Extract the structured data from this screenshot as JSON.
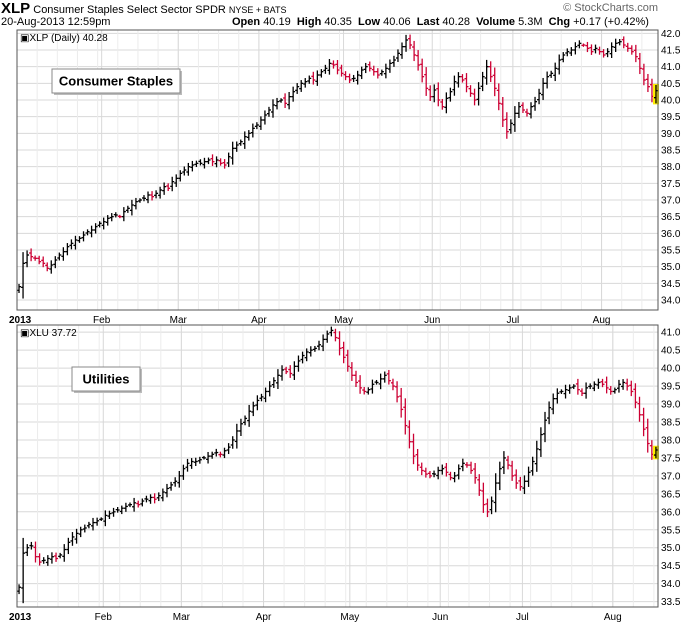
{
  "header": {
    "symbol": "XLP",
    "title": "Consumer Staples Select Sector SPDR",
    "exchange": "NYSE + BATS",
    "datetime": "20-Aug-2013 12:59pm",
    "open_label": "Open",
    "open": "40.19",
    "high_label": "High",
    "high": "40.35",
    "low_label": "Low",
    "low": "40.06",
    "last_label": "Last",
    "last": "40.28",
    "volume_label": "Volume",
    "volume": "5.3M",
    "chg_label": "Chg",
    "chg": "+0.17 (+0.42%)",
    "credit": "© StockCharts.com"
  },
  "colors": {
    "up": "#000000",
    "down": "#cc0033",
    "last_highlight": "#ffee00",
    "grid": "#d8d8d8",
    "frame": "#555555"
  },
  "chart_data": [
    {
      "type": "ohlc",
      "legend": "XLP (Daily) 40.28",
      "annotation": "Consumer Staples",
      "ylim": [
        33.7,
        42.1
      ],
      "yticks": [
        "34.0",
        "34.5",
        "35.0",
        "35.5",
        "36.0",
        "36.5",
        "37.0",
        "37.5",
        "38.0",
        "38.5",
        "39.0",
        "39.5",
        "40.0",
        "40.5",
        "41.0",
        "41.5",
        "42.0"
      ],
      "x_labels": [
        "2013",
        "Feb",
        "Mar",
        "Apr",
        "May",
        "Jun",
        "Jul",
        "Aug"
      ],
      "month_starts": [
        0,
        21,
        40,
        60,
        81,
        103,
        123,
        145
      ],
      "closes": [
        34.4,
        35.1,
        35.35,
        35.3,
        35.25,
        35.15,
        35.1,
        34.95,
        35.05,
        35.2,
        35.35,
        35.45,
        35.6,
        35.7,
        35.8,
        35.85,
        35.95,
        36.05,
        36.1,
        36.2,
        36.3,
        36.35,
        36.45,
        36.5,
        36.55,
        36.5,
        36.65,
        36.75,
        36.85,
        36.95,
        37.0,
        37.05,
        37.15,
        37.1,
        37.2,
        37.3,
        37.4,
        37.35,
        37.55,
        37.65,
        37.8,
        37.9,
        38.0,
        38.05,
        38.1,
        38.1,
        38.15,
        38.2,
        38.15,
        38.2,
        38.1,
        38.05,
        38.3,
        38.55,
        38.65,
        38.75,
        38.9,
        39.0,
        39.15,
        39.25,
        39.4,
        39.55,
        39.7,
        39.85,
        39.95,
        40.0,
        39.9,
        40.1,
        40.25,
        40.4,
        40.5,
        40.55,
        40.65,
        40.6,
        40.75,
        40.85,
        40.95,
        41.1,
        41.05,
        40.9,
        40.8,
        40.7,
        40.6,
        40.65,
        40.75,
        40.9,
        41.0,
        40.95,
        40.85,
        40.75,
        40.85,
        40.95,
        41.1,
        41.2,
        41.4,
        41.6,
        41.8,
        41.65,
        41.35,
        41.05,
        40.7,
        40.35,
        40.1,
        40.3,
        40.0,
        39.8,
        40.05,
        40.25,
        40.55,
        40.7,
        40.6,
        40.4,
        40.2,
        40.0,
        40.35,
        40.7,
        41.0,
        40.7,
        40.35,
        39.9,
        39.4,
        39.05,
        39.3,
        39.6,
        39.8,
        39.7,
        39.6,
        39.8,
        39.95,
        40.2,
        40.5,
        40.7,
        40.8,
        40.95,
        41.2,
        41.35,
        41.45,
        41.5,
        41.6,
        41.7,
        41.65,
        41.55,
        41.45,
        41.55,
        41.45,
        41.35,
        41.45,
        41.6,
        41.7,
        41.75,
        41.65,
        41.55,
        41.45,
        41.3,
        40.95,
        40.6,
        40.4,
        40.11,
        40.28
      ]
    },
    {
      "type": "ohlc",
      "legend": "XLU 37.72",
      "annotation": "Utilities",
      "ylim": [
        33.35,
        41.2
      ],
      "yticks": [
        "33.5",
        "34.0",
        "34.5",
        "35.0",
        "35.5",
        "36.0",
        "36.5",
        "37.0",
        "37.5",
        "38.0",
        "38.5",
        "39.0",
        "39.5",
        "40.0",
        "40.5",
        "41.0"
      ],
      "x_labels": [
        "2013",
        "Feb",
        "Mar",
        "Apr",
        "May",
        "Jun",
        "Jul",
        "Aug"
      ],
      "month_starts": [
        0,
        21,
        40,
        60,
        81,
        103,
        123,
        145
      ],
      "closes": [
        33.9,
        34.85,
        35.0,
        35.05,
        34.75,
        34.6,
        34.65,
        34.7,
        34.75,
        34.7,
        34.8,
        34.95,
        35.15,
        35.3,
        35.4,
        35.5,
        35.55,
        35.65,
        35.7,
        35.75,
        35.8,
        35.9,
        35.95,
        36.0,
        36.05,
        36.1,
        36.15,
        36.2,
        36.25,
        36.2,
        36.3,
        36.35,
        36.4,
        36.35,
        36.45,
        36.55,
        36.65,
        36.75,
        36.85,
        37.0,
        37.2,
        37.35,
        37.4,
        37.4,
        37.45,
        37.5,
        37.55,
        37.6,
        37.65,
        37.6,
        37.7,
        37.8,
        38.0,
        38.25,
        38.45,
        38.6,
        38.8,
        38.95,
        39.1,
        39.2,
        39.35,
        39.5,
        39.65,
        39.8,
        39.95,
        39.9,
        39.85,
        40.05,
        40.2,
        40.35,
        40.45,
        40.5,
        40.55,
        40.65,
        40.8,
        40.95,
        41.05,
        40.85,
        40.55,
        40.3,
        40.05,
        39.8,
        39.6,
        39.45,
        39.35,
        39.4,
        39.55,
        39.6,
        39.7,
        39.8,
        39.65,
        39.5,
        39.2,
        38.85,
        38.4,
        37.95,
        37.55,
        37.3,
        37.15,
        37.05,
        37.0,
        37.05,
        37.15,
        37.2,
        37.1,
        36.95,
        37.0,
        37.2,
        37.35,
        37.3,
        37.15,
        36.95,
        36.6,
        36.2,
        36.0,
        36.3,
        36.8,
        37.2,
        37.5,
        37.3,
        37.0,
        36.8,
        36.7,
        36.85,
        37.1,
        37.4,
        37.75,
        38.15,
        38.55,
        38.9,
        39.15,
        39.3,
        39.35,
        39.4,
        39.45,
        39.5,
        39.4,
        39.3,
        39.45,
        39.5,
        39.55,
        39.6,
        39.55,
        39.45,
        39.35,
        39.4,
        39.55,
        39.6,
        39.5,
        39.35,
        39.05,
        38.7,
        38.3,
        37.9,
        37.6,
        37.72
      ]
    }
  ]
}
